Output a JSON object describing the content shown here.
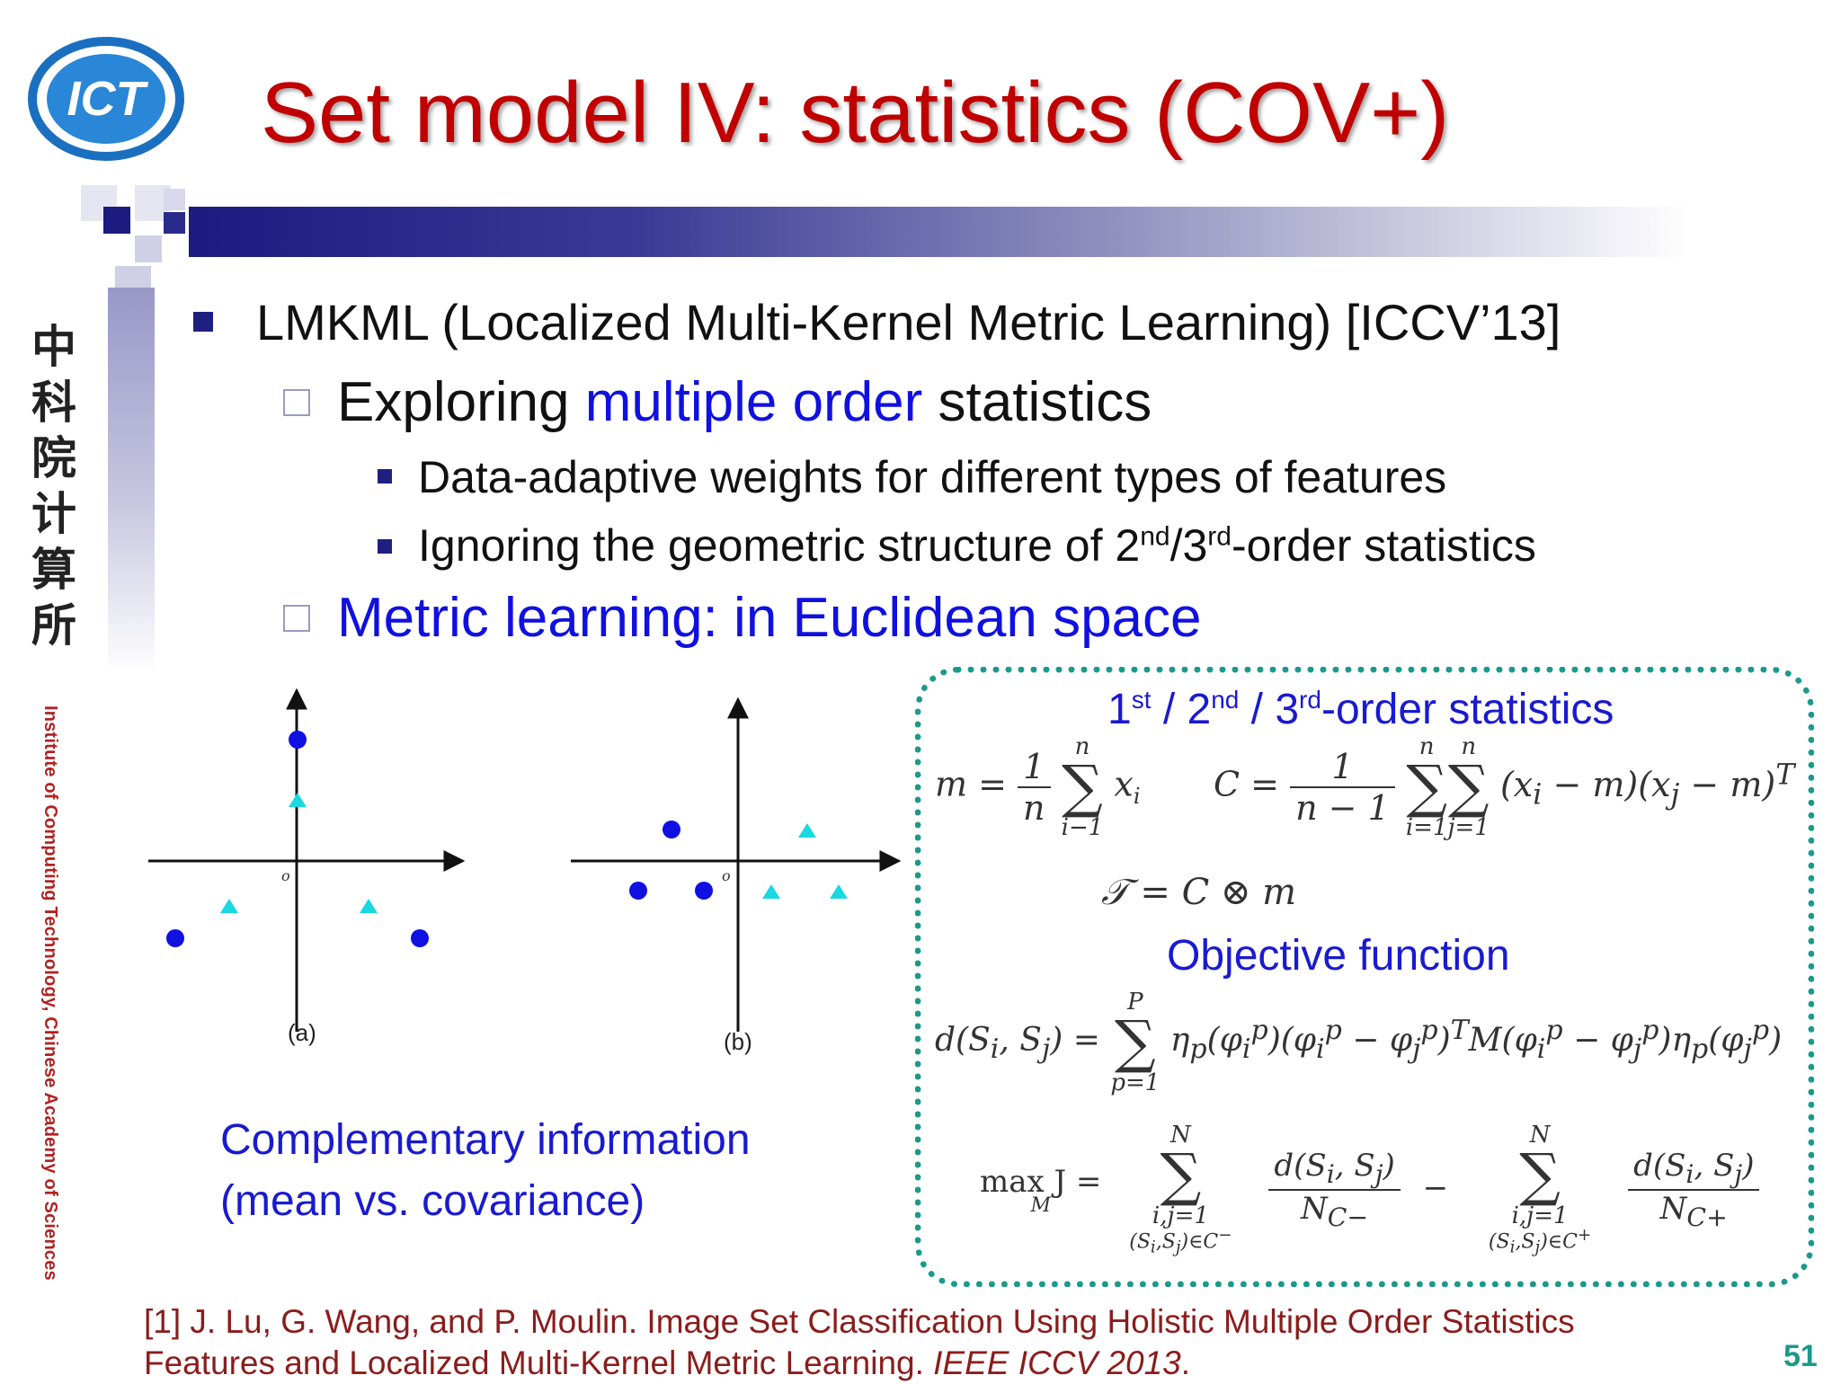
{
  "slide": {
    "title": "Set model IV: statistics (COV+)",
    "page_number": "51"
  },
  "branding": {
    "logo_text": "ICT",
    "chinese_name": [
      "中",
      "科",
      "院",
      "计",
      "算",
      "所"
    ],
    "institute_vertical": "Institute of Computing Technology, Chinese Academy of Sciences",
    "colors": {
      "title": "#c00000",
      "accent_blue": "#1f1f80",
      "teal": "#1a9a8a"
    }
  },
  "bullets": {
    "l1": "LMKML (Localized Multi-Kernel Metric Learning) [ICCV’13]",
    "l2a": {
      "pre": "Exploring ",
      "hl": "multiple order",
      "post": " statistics"
    },
    "l3a": "Data-adaptive weights for different types of features",
    "l3b": {
      "pre": "Ignoring the geometric structure of 2",
      "sup1": "nd",
      "mid": "/3",
      "sup2": "rd",
      "post": "-order statistics"
    },
    "l2b": "Metric learning: in Euclidean space"
  },
  "figure": {
    "origin_label": "o",
    "panel_a_label": "(a)",
    "panel_b_label": "(b)",
    "caption_line1": "Complementary information",
    "caption_line2": "(mean vs. covariance)"
  },
  "formula_box": {
    "title_stats": {
      "a": "1",
      "a_sup": "st",
      "b": " / 2",
      "b_sup": "nd",
      "c": " / 3",
      "c_sup": "rd",
      "d": "-order statistics"
    },
    "title_objective": "Objective function",
    "eq_mean": {
      "lhs": "m =",
      "num": "1",
      "den": "n",
      "top": "n",
      "bot": "i−1",
      "term": "x",
      "sub": "i"
    },
    "eq_cov": {
      "lhs": "C =",
      "num": "1",
      "den": "n − 1",
      "top": "n",
      "bot1": "i=1",
      "bot2": "j=1",
      "term": "(x<sub>i</sub> − m)(x<sub>j</sub> − m)<sup>T</sup>"
    },
    "eq_tensor": "𝒯 = C ⊗ m",
    "eq_distance": {
      "lhs": "d(S<sub>i</sub>, S<sub>j</sub>) =",
      "top": "P",
      "bot": "p=1",
      "term": "η<sub>p</sub>(φ<sub>i</sub><sup>p</sup>)(φ<sub>i</sub><sup>p</sup> − φ<sub>j</sub><sup>p</sup>)<sup>T</sup>M(φ<sub>i</sub><sup>p</sup> − φ<sub>j</sub><sup>p</sup>)η<sub>p</sub>(φ<sub>j</sub><sup>p</sup>)"
    },
    "eq_objective": {
      "lhs": "max J =",
      "lhs_sub": "M",
      "top": "N",
      "bot1": "i,j=1",
      "bot2a": "(S<sub>i</sub>,S<sub>j</sub>)∈C<sup>−</sup>",
      "bot2b": "(S<sub>i</sub>,S<sub>j</sub>)∈C<sup>+</sup>",
      "num": "d(S<sub>i</sub>, S<sub>j</sub>)",
      "den_a": "N<sub>C−</sub>",
      "den_b": "N<sub>C+</sub>",
      "minus": "−"
    }
  },
  "reference": {
    "line1": "[1] J. Lu, G. Wang, and P. Moulin. Image Set Classification Using Holistic Multiple Order Statistics",
    "line2_pre": "Features and Localized Multi-Kernel Metric Learning. ",
    "line2_venue": "IEEE ICCV 2013",
    "line2_post": "."
  }
}
